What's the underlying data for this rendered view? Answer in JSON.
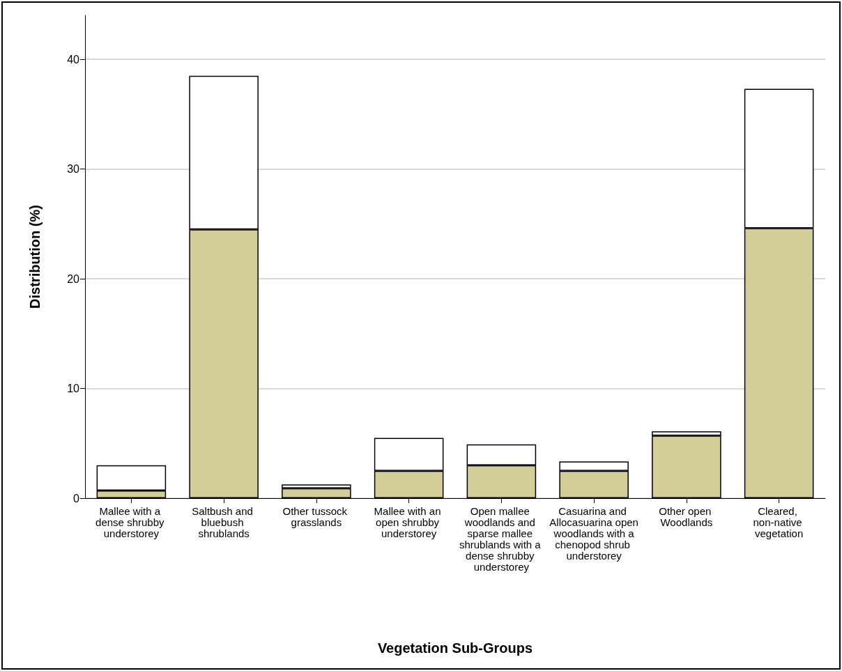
{
  "chart_data": {
    "type": "bar",
    "stacked": true,
    "xlabel": "Vegetation Sub-Groups",
    "ylabel": "Distribution (%)",
    "categories": [
      "Mallee with a dense shrubby understorey",
      "Saltbush and bluebush shrublands",
      "Other tussock grasslands",
      "Mallee with an open shrubby understorey",
      "Open mallee woodlands and sparse mallee shrublands with a dense shrubby understorey",
      "Casuarina and Allocasuarina open woodlands with a chenopod shrub understorey",
      "Other open Woodlands",
      "Cleared, non-native vegetation"
    ],
    "series": [
      {
        "color": "#d3ce98",
        "values": [
          0.7,
          24.5,
          0.9,
          2.5,
          3.0,
          2.5,
          5.7,
          24.6
        ]
      },
      {
        "color": "#ffffff",
        "values": [
          2.3,
          14.0,
          0.35,
          3.0,
          1.9,
          0.85,
          0.4,
          12.7
        ]
      }
    ],
    "ylim": [
      0,
      44
    ],
    "yticks": [
      0,
      10,
      20,
      30,
      40
    ],
    "grid": "y"
  }
}
